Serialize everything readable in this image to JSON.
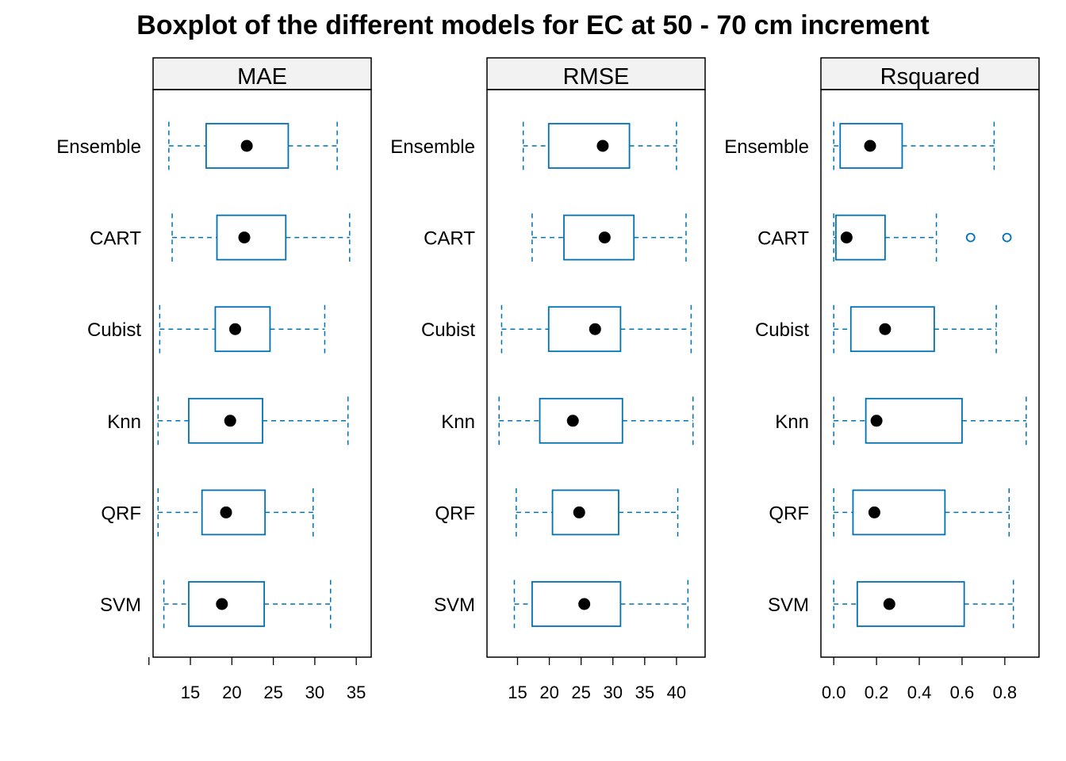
{
  "chart_data": {
    "type": "boxplot",
    "orientation": "horizontal",
    "title": "Boxplot of the different models for EC at 50 - 70 cm increment",
    "categories": [
      "Ensemble",
      "CART",
      "Cubist",
      "Knn",
      "QRF",
      "SVM"
    ],
    "box_color": "#0072B2",
    "median_color": "#000000",
    "grid": false,
    "panels": [
      {
        "name": "MAE",
        "xlim": [
          10.5,
          36.8
        ],
        "ticks": [
          10,
          15,
          20,
          25,
          30,
          35
        ],
        "tick_labels": [
          "",
          "15",
          "20",
          "25",
          "30",
          "35"
        ],
        "series": [
          {
            "category": "Ensemble",
            "min": 12.4,
            "q1": 16.9,
            "median": 21.8,
            "q3": 26.8,
            "max": 32.7,
            "outliers": []
          },
          {
            "category": "CART",
            "min": 12.8,
            "q1": 18.2,
            "median": 21.5,
            "q3": 26.5,
            "max": 34.2,
            "outliers": []
          },
          {
            "category": "Cubist",
            "min": 11.3,
            "q1": 18.0,
            "median": 20.4,
            "q3": 24.6,
            "max": 31.2,
            "outliers": []
          },
          {
            "category": "Knn",
            "min": 11.1,
            "q1": 14.8,
            "median": 19.8,
            "q3": 23.7,
            "max": 34.0,
            "outliers": []
          },
          {
            "category": "QRF",
            "min": 11.1,
            "q1": 16.4,
            "median": 19.3,
            "q3": 24.0,
            "max": 29.8,
            "outliers": []
          },
          {
            "category": "SVM",
            "min": 11.8,
            "q1": 14.8,
            "median": 18.8,
            "q3": 23.9,
            "max": 31.9,
            "outliers": []
          }
        ]
      },
      {
        "name": "RMSE",
        "xlim": [
          10.2,
          44.5
        ],
        "ticks": [
          15,
          20,
          25,
          30,
          35,
          40
        ],
        "tick_labels": [
          "15",
          "20",
          "25",
          "30",
          "35",
          "40"
        ],
        "series": [
          {
            "category": "Ensemble",
            "min": 15.9,
            "q1": 19.9,
            "median": 28.4,
            "q3": 32.6,
            "max": 40.0,
            "outliers": []
          },
          {
            "category": "CART",
            "min": 17.3,
            "q1": 22.3,
            "median": 28.7,
            "q3": 33.3,
            "max": 41.5,
            "outliers": []
          },
          {
            "category": "Cubist",
            "min": 12.5,
            "q1": 19.9,
            "median": 27.2,
            "q3": 31.2,
            "max": 42.3,
            "outliers": []
          },
          {
            "category": "Knn",
            "min": 12.1,
            "q1": 18.5,
            "median": 23.7,
            "q3": 31.5,
            "max": 42.6,
            "outliers": []
          },
          {
            "category": "QRF",
            "min": 14.8,
            "q1": 20.5,
            "median": 24.7,
            "q3": 30.9,
            "max": 40.2,
            "outliers": []
          },
          {
            "category": "SVM",
            "min": 14.5,
            "q1": 17.3,
            "median": 25.5,
            "q3": 31.2,
            "max": 41.8,
            "outliers": []
          }
        ]
      },
      {
        "name": "Rsquared",
        "xlim": [
          -0.06,
          0.96
        ],
        "ticks": [
          0.0,
          0.2,
          0.4,
          0.6,
          0.8
        ],
        "tick_labels": [
          "0.0",
          "0.2",
          "0.4",
          "0.6",
          "0.8"
        ],
        "series": [
          {
            "category": "Ensemble",
            "min": 0.0,
            "q1": 0.03,
            "median": 0.17,
            "q3": 0.32,
            "max": 0.75,
            "outliers": []
          },
          {
            "category": "CART",
            "min": 0.0,
            "q1": 0.01,
            "median": 0.06,
            "q3": 0.24,
            "max": 0.48,
            "outliers": [
              0.64,
              0.81
            ]
          },
          {
            "category": "Cubist",
            "min": 0.0,
            "q1": 0.08,
            "median": 0.24,
            "q3": 0.47,
            "max": 0.76,
            "outliers": []
          },
          {
            "category": "Knn",
            "min": 0.0,
            "q1": 0.15,
            "median": 0.2,
            "q3": 0.6,
            "max": 0.9,
            "outliers": []
          },
          {
            "category": "QRF",
            "min": 0.0,
            "q1": 0.09,
            "median": 0.19,
            "q3": 0.52,
            "max": 0.82,
            "outliers": []
          },
          {
            "category": "SVM",
            "min": 0.0,
            "q1": 0.11,
            "median": 0.26,
            "q3": 0.61,
            "max": 0.84,
            "outliers": []
          }
        ]
      }
    ]
  }
}
